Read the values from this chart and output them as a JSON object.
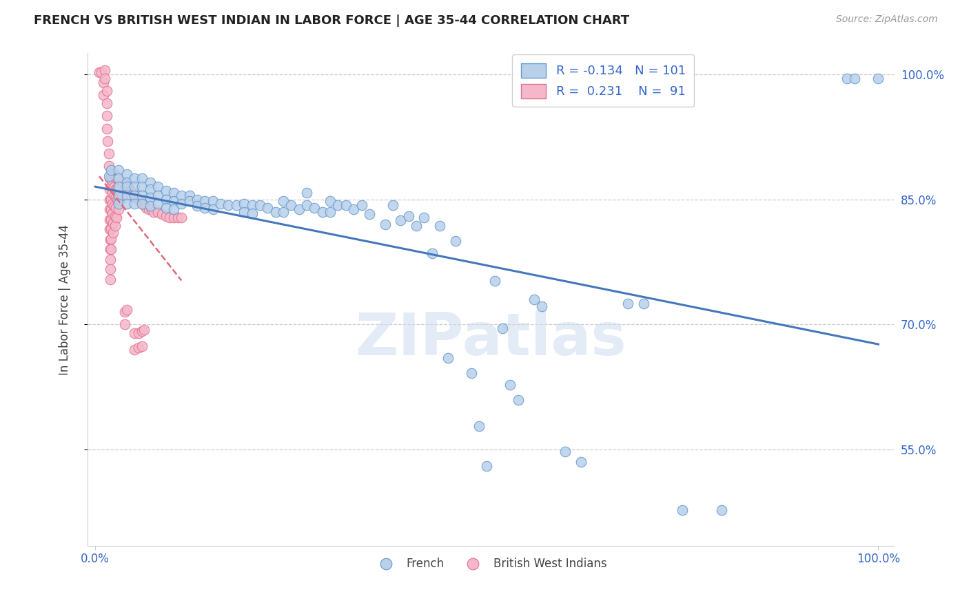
{
  "title": "FRENCH VS BRITISH WEST INDIAN IN LABOR FORCE | AGE 35-44 CORRELATION CHART",
  "source": "Source: ZipAtlas.com",
  "ylabel": "In Labor Force | Age 35-44",
  "xlim": [
    -0.01,
    1.02
  ],
  "ylim": [
    0.435,
    1.025
  ],
  "yticks": [
    0.55,
    0.7,
    0.85,
    1.0
  ],
  "ytick_labels": [
    "55.0%",
    "70.0%",
    "85.0%",
    "100.0%"
  ],
  "xtick_vals": [
    0.0,
    1.0
  ],
  "xtick_labels": [
    "0.0%",
    "100.0%"
  ],
  "legend_r_french": "-0.134",
  "legend_n_french": "101",
  "legend_r_bwi": "0.231",
  "legend_n_bwi": "91",
  "french_color": "#b8d0ea",
  "french_edge_color": "#6699cc",
  "bwi_color": "#f5b8ca",
  "bwi_edge_color": "#e07090",
  "trend_french_color": "#4477bb",
  "trend_bwi_color": "#e06878",
  "watermark_text": "ZIPatlas",
  "background_color": "#ffffff",
  "french_points": [
    [
      0.017,
      0.878
    ],
    [
      0.02,
      0.885
    ],
    [
      0.03,
      0.885
    ],
    [
      0.03,
      0.875
    ],
    [
      0.03,
      0.865
    ],
    [
      0.03,
      0.855
    ],
    [
      0.03,
      0.845
    ],
    [
      0.04,
      0.88
    ],
    [
      0.04,
      0.87
    ],
    [
      0.04,
      0.865
    ],
    [
      0.04,
      0.855
    ],
    [
      0.04,
      0.845
    ],
    [
      0.05,
      0.875
    ],
    [
      0.05,
      0.865
    ],
    [
      0.05,
      0.855
    ],
    [
      0.05,
      0.845
    ],
    [
      0.06,
      0.875
    ],
    [
      0.06,
      0.865
    ],
    [
      0.06,
      0.855
    ],
    [
      0.06,
      0.845
    ],
    [
      0.07,
      0.87
    ],
    [
      0.07,
      0.862
    ],
    [
      0.07,
      0.852
    ],
    [
      0.07,
      0.842
    ],
    [
      0.08,
      0.865
    ],
    [
      0.08,
      0.855
    ],
    [
      0.08,
      0.845
    ],
    [
      0.09,
      0.86
    ],
    [
      0.09,
      0.85
    ],
    [
      0.09,
      0.84
    ],
    [
      0.1,
      0.858
    ],
    [
      0.1,
      0.848
    ],
    [
      0.1,
      0.838
    ],
    [
      0.11,
      0.855
    ],
    [
      0.11,
      0.845
    ],
    [
      0.12,
      0.855
    ],
    [
      0.12,
      0.848
    ],
    [
      0.13,
      0.85
    ],
    [
      0.13,
      0.842
    ],
    [
      0.14,
      0.848
    ],
    [
      0.14,
      0.84
    ],
    [
      0.15,
      0.848
    ],
    [
      0.15,
      0.838
    ],
    [
      0.16,
      0.845
    ],
    [
      0.17,
      0.843
    ],
    [
      0.18,
      0.843
    ],
    [
      0.19,
      0.845
    ],
    [
      0.19,
      0.835
    ],
    [
      0.2,
      0.843
    ],
    [
      0.2,
      0.833
    ],
    [
      0.21,
      0.843
    ],
    [
      0.22,
      0.84
    ],
    [
      0.23,
      0.835
    ],
    [
      0.24,
      0.848
    ],
    [
      0.24,
      0.835
    ],
    [
      0.25,
      0.843
    ],
    [
      0.26,
      0.838
    ],
    [
      0.27,
      0.858
    ],
    [
      0.27,
      0.843
    ],
    [
      0.28,
      0.84
    ],
    [
      0.29,
      0.835
    ],
    [
      0.3,
      0.848
    ],
    [
      0.3,
      0.835
    ],
    [
      0.31,
      0.843
    ],
    [
      0.32,
      0.843
    ],
    [
      0.33,
      0.838
    ],
    [
      0.34,
      0.843
    ],
    [
      0.35,
      0.832
    ],
    [
      0.37,
      0.82
    ],
    [
      0.38,
      0.843
    ],
    [
      0.39,
      0.825
    ],
    [
      0.4,
      0.83
    ],
    [
      0.41,
      0.818
    ],
    [
      0.42,
      0.828
    ],
    [
      0.43,
      0.785
    ],
    [
      0.44,
      0.818
    ],
    [
      0.45,
      0.66
    ],
    [
      0.46,
      0.8
    ],
    [
      0.48,
      0.642
    ],
    [
      0.49,
      0.578
    ],
    [
      0.5,
      0.53
    ],
    [
      0.51,
      0.752
    ],
    [
      0.52,
      0.695
    ],
    [
      0.53,
      0.628
    ],
    [
      0.54,
      0.61
    ],
    [
      0.56,
      0.73
    ],
    [
      0.57,
      0.722
    ],
    [
      0.6,
      0.548
    ],
    [
      0.62,
      0.535
    ],
    [
      0.68,
      0.725
    ],
    [
      0.7,
      0.725
    ],
    [
      0.75,
      0.478
    ],
    [
      0.8,
      0.478
    ],
    [
      0.96,
      0.995
    ],
    [
      0.97,
      0.995
    ],
    [
      1.0,
      0.995
    ]
  ],
  "bwi_points": [
    [
      0.005,
      1.002
    ],
    [
      0.008,
      1.002
    ],
    [
      0.01,
      0.99
    ],
    [
      0.01,
      0.975
    ],
    [
      0.012,
      1.005
    ],
    [
      0.012,
      0.995
    ],
    [
      0.015,
      0.98
    ],
    [
      0.015,
      0.965
    ],
    [
      0.015,
      0.95
    ],
    [
      0.015,
      0.935
    ],
    [
      0.016,
      0.92
    ],
    [
      0.017,
      0.905
    ],
    [
      0.017,
      0.89
    ],
    [
      0.018,
      0.875
    ],
    [
      0.018,
      0.862
    ],
    [
      0.018,
      0.85
    ],
    [
      0.018,
      0.838
    ],
    [
      0.018,
      0.826
    ],
    [
      0.018,
      0.814
    ],
    [
      0.019,
      0.802
    ],
    [
      0.019,
      0.79
    ],
    [
      0.019,
      0.778
    ],
    [
      0.019,
      0.766
    ],
    [
      0.019,
      0.754
    ],
    [
      0.02,
      0.88
    ],
    [
      0.02,
      0.865
    ],
    [
      0.02,
      0.85
    ],
    [
      0.02,
      0.838
    ],
    [
      0.02,
      0.826
    ],
    [
      0.02,
      0.815
    ],
    [
      0.02,
      0.803
    ],
    [
      0.02,
      0.79
    ],
    [
      0.022,
      0.872
    ],
    [
      0.022,
      0.858
    ],
    [
      0.022,
      0.845
    ],
    [
      0.022,
      0.833
    ],
    [
      0.023,
      0.822
    ],
    [
      0.023,
      0.81
    ],
    [
      0.024,
      0.88
    ],
    [
      0.024,
      0.865
    ],
    [
      0.024,
      0.855
    ],
    [
      0.024,
      0.842
    ],
    [
      0.025,
      0.83
    ],
    [
      0.025,
      0.818
    ],
    [
      0.026,
      0.875
    ],
    [
      0.026,
      0.862
    ],
    [
      0.026,
      0.852
    ],
    [
      0.026,
      0.84
    ],
    [
      0.027,
      0.828
    ],
    [
      0.028,
      0.875
    ],
    [
      0.028,
      0.862
    ],
    [
      0.028,
      0.85
    ],
    [
      0.03,
      0.862
    ],
    [
      0.03,
      0.85
    ],
    [
      0.03,
      0.838
    ],
    [
      0.032,
      0.85
    ],
    [
      0.035,
      0.855
    ],
    [
      0.038,
      0.862
    ],
    [
      0.04,
      0.87
    ],
    [
      0.042,
      0.865
    ],
    [
      0.045,
      0.86
    ],
    [
      0.048,
      0.858
    ],
    [
      0.05,
      0.855
    ],
    [
      0.052,
      0.852
    ],
    [
      0.055,
      0.85
    ],
    [
      0.058,
      0.848
    ],
    [
      0.06,
      0.845
    ],
    [
      0.063,
      0.842
    ],
    [
      0.065,
      0.84
    ],
    [
      0.068,
      0.838
    ],
    [
      0.072,
      0.838
    ],
    [
      0.075,
      0.835
    ],
    [
      0.08,
      0.835
    ],
    [
      0.085,
      0.832
    ],
    [
      0.09,
      0.83
    ],
    [
      0.095,
      0.828
    ],
    [
      0.1,
      0.828
    ],
    [
      0.105,
      0.828
    ],
    [
      0.11,
      0.828
    ],
    [
      0.05,
      0.69
    ],
    [
      0.05,
      0.67
    ],
    [
      0.055,
      0.69
    ],
    [
      0.055,
      0.672
    ],
    [
      0.06,
      0.692
    ],
    [
      0.06,
      0.674
    ],
    [
      0.062,
      0.694
    ],
    [
      0.038,
      0.715
    ],
    [
      0.038,
      0.7
    ],
    [
      0.04,
      0.718
    ]
  ]
}
